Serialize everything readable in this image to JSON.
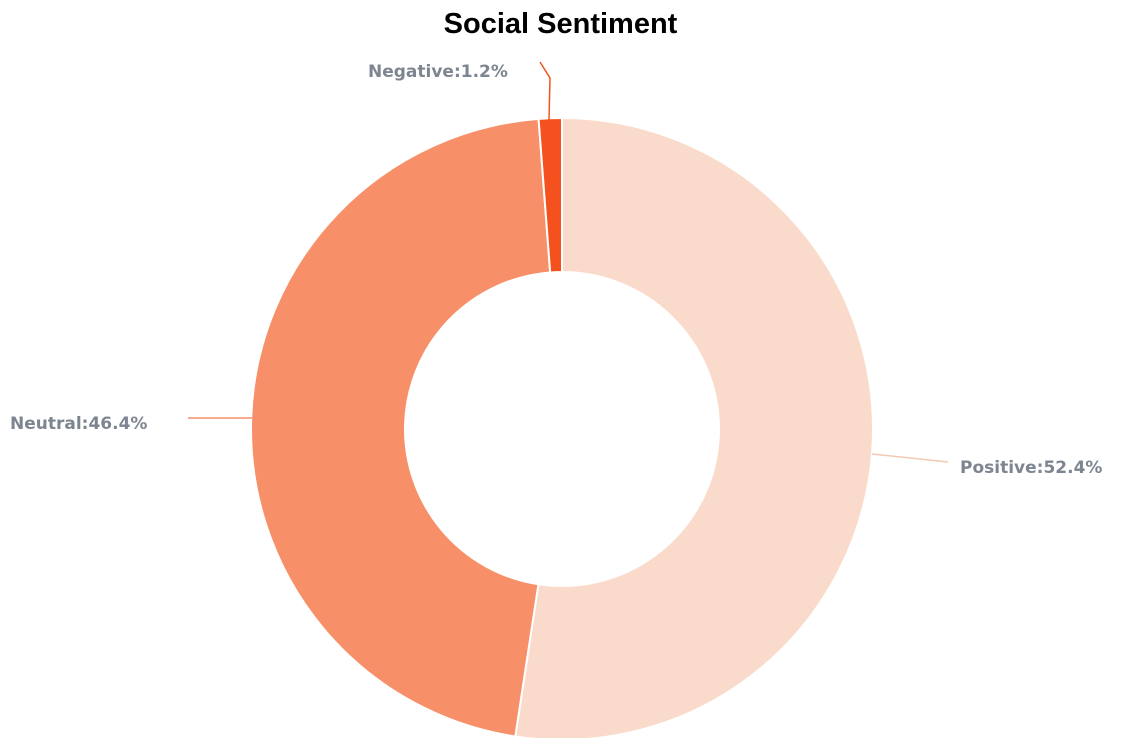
{
  "chart_data": {
    "type": "pie",
    "title": "Social Sentiment",
    "style": "donut",
    "slices": [
      {
        "name": "Positive",
        "value": 52.4,
        "label": "Positive:52.4%",
        "color": "#fadbcb"
      },
      {
        "name": "Neutral",
        "value": 46.4,
        "label": "Neutral:46.4%",
        "color": "#f79069"
      },
      {
        "name": "Negative",
        "value": 1.2,
        "label": "Negative:1.2%",
        "color": "#f4511e"
      }
    ],
    "label_color": "#7d8590"
  }
}
